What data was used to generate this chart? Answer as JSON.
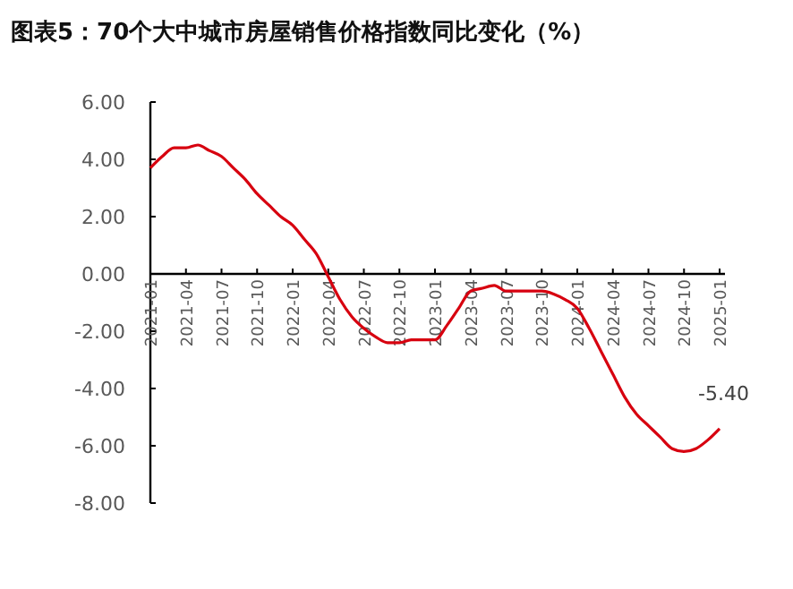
{
  "chart_data": {
    "type": "line",
    "title": "图表5：70个大中城市房屋销售价格指数同比变化（%）",
    "categories": [
      "2021-01",
      null,
      null,
      "2021-04",
      null,
      null,
      "2021-07",
      null,
      null,
      "2021-10",
      null,
      null,
      "2022-01",
      null,
      null,
      "2022-04",
      null,
      null,
      "2022-07",
      null,
      null,
      "2022-10",
      null,
      null,
      "2023-01",
      null,
      null,
      "2023-04",
      null,
      null,
      "2023-07",
      null,
      null,
      "2023-10",
      null,
      null,
      "2024-01",
      null,
      null,
      "2024-04",
      null,
      null,
      "2024-07",
      null,
      null,
      "2024-10",
      null,
      null,
      "2025-01"
    ],
    "series": [
      {
        "color": "#d7000f",
        "values": [
          3.7,
          4.1,
          4.4,
          4.4,
          4.5,
          4.3,
          4.1,
          3.7,
          3.3,
          2.8,
          2.4,
          2.0,
          1.7,
          1.2,
          0.7,
          -0.1,
          -0.9,
          -1.5,
          -1.9,
          -2.2,
          -2.4,
          -2.4,
          -2.3,
          -2.3,
          -2.3,
          -1.8,
          -1.2,
          -0.6,
          -0.5,
          -0.4,
          -0.6,
          -0.6,
          -0.6,
          -0.6,
          -0.7,
          -0.9,
          -1.2,
          -1.9,
          -2.7,
          -3.5,
          -4.3,
          -4.9,
          -5.3,
          -5.7,
          -6.1,
          -6.2,
          -6.1,
          -5.8,
          -5.4
        ]
      }
    ],
    "ylim": [
      -8,
      6
    ],
    "yticks": [
      {
        "value": -8,
        "label": "-8.00"
      },
      {
        "value": -6,
        "label": "-6.00"
      },
      {
        "value": -4,
        "label": "-4.00"
      },
      {
        "value": -2,
        "label": "-2.00"
      },
      {
        "value": 0,
        "label": "0.00"
      },
      {
        "value": 2,
        "label": "2.00"
      },
      {
        "value": 4,
        "label": "4.00"
      },
      {
        "value": 6,
        "label": "6.00"
      }
    ],
    "annotations": [
      {
        "text": "-5.40",
        "x": "2025-01",
        "y": -5.4
      }
    ],
    "marker": "none",
    "line_style": "solid"
  }
}
